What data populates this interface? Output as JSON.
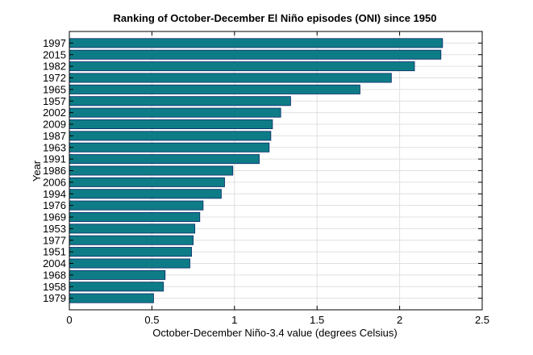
{
  "chart_data": {
    "type": "bar",
    "orientation": "horizontal",
    "title": "Ranking of October-December El Niño episodes (ONI) since 1950",
    "xlabel": "October-December Niño-3.4 value (degrees Celsius)",
    "ylabel": "Year",
    "xlim": [
      0,
      2.5
    ],
    "xticks": [
      "0",
      "0.5",
      "1",
      "1.5",
      "2",
      "2.5"
    ],
    "grid": true,
    "bar_color": "#0e7c86",
    "bar_edge_color": "#0b2a6b",
    "categories": [
      "1997",
      "2015",
      "1982",
      "1972",
      "1965",
      "1957",
      "2002",
      "2009",
      "1987",
      "1963",
      "1991",
      "1986",
      "2006",
      "1994",
      "1976",
      "1969",
      "1953",
      "1977",
      "1951",
      "2004",
      "1968",
      "1958",
      "1979"
    ],
    "values": [
      2.26,
      2.25,
      2.09,
      1.95,
      1.76,
      1.34,
      1.28,
      1.23,
      1.22,
      1.21,
      1.15,
      0.99,
      0.94,
      0.92,
      0.81,
      0.79,
      0.76,
      0.75,
      0.74,
      0.73,
      0.58,
      0.57,
      0.51
    ]
  }
}
